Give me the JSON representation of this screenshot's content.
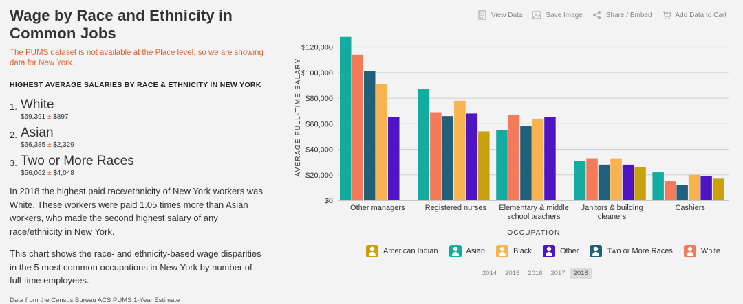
{
  "page": {
    "title": "Wage by Race and Ethnicity in Common Jobs",
    "notice": "The PUMS dataset is not available at the Place level, so we are showing data for New York.",
    "subhead": "HIGHEST AVERAGE SALARIES BY RACE & ETHNICITY IN NEW YORK",
    "rankings": [
      {
        "num": "1.",
        "name": "White",
        "value": "$69,391",
        "pm": "±",
        "moe": "$897"
      },
      {
        "num": "2.",
        "name": "Asian",
        "value": "$66,385",
        "pm": "±",
        "moe": "$2,329"
      },
      {
        "num": "3.",
        "name": "Two or More Races",
        "value": "$56,062",
        "pm": "±",
        "moe": "$4,048"
      }
    ],
    "para1": "In 2018 the highest paid race/ethnicity of New York workers was White. These workers were paid 1.05 times more than Asian workers, who made the second highest salary of any race/ethnicity in New York.",
    "para2": "This chart shows the race- and ethnicity-based wage disparities in the 5 most common occupations in New York by number of full-time employees.",
    "source_prefix": "Data from ",
    "source_link1": "the Census Bureau",
    "source_link2": "ACS PUMS 1-Year Estimate"
  },
  "toolbar": {
    "view_data": "View Data",
    "save_image": "Save Image",
    "share_embed": "Share / Embed",
    "add_to_cart": "Add Data to Cart"
  },
  "years": [
    "2014",
    "2015",
    "2016",
    "2017",
    "2018"
  ],
  "active_year": "2018",
  "colors": {
    "American Indian": "#c9a10f",
    "Asian": "#14aba0",
    "Black": "#f9b34e",
    "Other": "#4f15c4",
    "Two or More Races": "#20607a",
    "White": "#f47a5a"
  },
  "chart_data": {
    "type": "bar",
    "xlabel": "OCCUPATION",
    "ylabel": "AVERAGE FULL-TIME SALARY",
    "ylim": [
      0,
      130000
    ],
    "yticks": [
      0,
      20000,
      40000,
      60000,
      80000,
      100000,
      120000
    ],
    "ytick_labels": [
      "$0",
      "$20,000",
      "$40,000",
      "$60,000",
      "$80,000",
      "$100,000",
      "$120,000"
    ],
    "categories": [
      [
        "Other managers"
      ],
      [
        "Registered nurses"
      ],
      [
        "Elementary & middle",
        "school teachers"
      ],
      [
        "Janitors & building",
        "cleaners"
      ],
      [
        "Cashiers"
      ]
    ],
    "series_order": [
      "Asian",
      "White",
      "Two or More Races",
      "Black",
      "Other",
      "American Indian"
    ],
    "values": [
      [
        128000,
        114000,
        101000,
        91000,
        65000,
        null
      ],
      [
        87000,
        69000,
        66000,
        78000,
        68000,
        54000
      ],
      [
        55000,
        67000,
        58000,
        64000,
        65000,
        null
      ],
      [
        31000,
        33000,
        28000,
        33000,
        28000,
        26000
      ],
      [
        22000,
        15000,
        12000,
        20000,
        19000,
        17000
      ]
    ],
    "legend": [
      "American Indian",
      "Asian",
      "Black",
      "Other",
      "Two or More Races",
      "White"
    ]
  }
}
